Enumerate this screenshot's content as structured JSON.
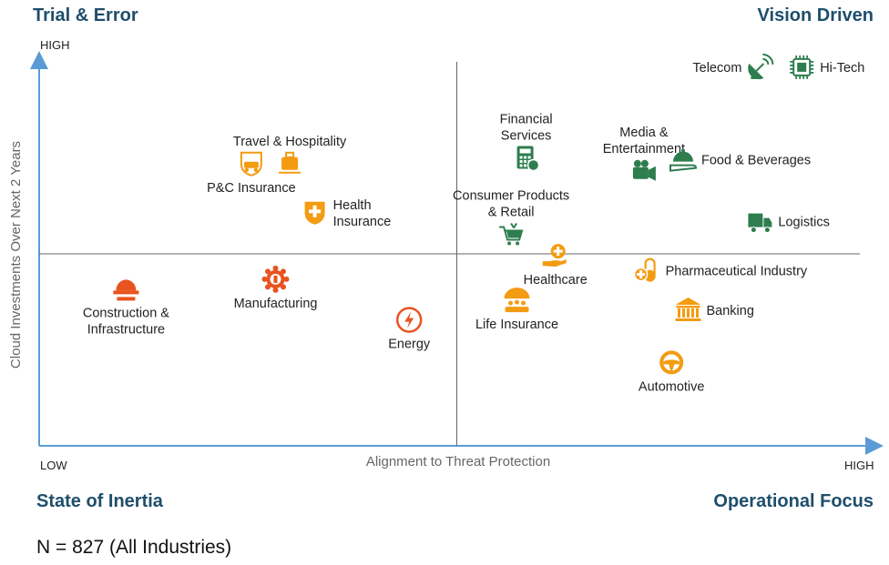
{
  "quadrants": {
    "top_left": "Trial & Error",
    "top_right": "Vision Driven",
    "bottom_left": "State of Inertia",
    "bottom_right": "Operational Focus"
  },
  "axis_ticks": {
    "y_high": "HIGH",
    "x_low": "LOW",
    "x_high": "HIGH"
  },
  "footer": "N = 827 (All Industries)",
  "colors": {
    "orange": "#f39c12",
    "orange_red": "#e8531f",
    "green": "#2e7d4f",
    "axis": "#5b9bd5",
    "divider": "#666666"
  },
  "chart_data": {
    "type": "scatter",
    "xlabel": "Alignment to Threat Protection",
    "ylabel": "Cloud Investments Over Next 2 Years",
    "xlim": [
      0,
      100
    ],
    "ylim": [
      0,
      100
    ],
    "x_tick_labels": [
      "LOW",
      "HIGH"
    ],
    "y_tick_labels": [
      "HIGH"
    ],
    "dividers": {
      "x": 50,
      "y": 50
    },
    "points": [
      {
        "label": "Travel & Hospitality",
        "lines": [
          "Travel & Hospitality"
        ],
        "x": 30,
        "y": 73.5,
        "icon": "luggage-icon",
        "color": "orange",
        "label_pos": "above"
      },
      {
        "label": "P&C Insurance",
        "lines": [
          "P&C Insurance"
        ],
        "x": 25.4,
        "y": 73.5,
        "icon": "car-shield-icon",
        "color": "orange",
        "label_pos": "below"
      },
      {
        "label": "Health Insurance",
        "lines": [
          "Health",
          "Insurance"
        ],
        "x": 33,
        "y": 60.7,
        "icon": "health-shield-icon",
        "color": "orange",
        "label_pos": "right"
      },
      {
        "label": "Financial Services",
        "lines": [
          "Financial",
          "Services"
        ],
        "x": 58.3,
        "y": 75,
        "icon": "calculator-icon",
        "color": "green",
        "label_pos": "above"
      },
      {
        "label": "Media & Entertainment",
        "lines": [
          "Media &",
          "Entertainment"
        ],
        "x": 72.4,
        "y": 71.6,
        "icon": "camera-icon",
        "color": "green",
        "label_pos": "above"
      },
      {
        "label": "Food & Beverages",
        "lines": [
          "Food & Beverages"
        ],
        "x": 77.1,
        "y": 74.5,
        "icon": "cloche-icon",
        "color": "green",
        "label_pos": "right"
      },
      {
        "label": "Telecom",
        "lines": [
          "Telecom"
        ],
        "x": 86.3,
        "y": 98.6,
        "icon": "satellite-dish-icon",
        "color": "green",
        "label_pos": "left"
      },
      {
        "label": "Hi-Tech",
        "lines": [
          "Hi-Tech"
        ],
        "x": 91.3,
        "y": 98.6,
        "icon": "chip-icon",
        "color": "green",
        "label_pos": "right"
      },
      {
        "label": "Consumer Products & Retail",
        "lines": [
          "Consumer Products",
          "& Retail"
        ],
        "x": 56.5,
        "y": 55.1,
        "icon": "cart-icon",
        "color": "green",
        "label_pos": "above"
      },
      {
        "label": "Logistics",
        "lines": [
          "Logistics"
        ],
        "x": 86.3,
        "y": 58.4,
        "icon": "truck-icon",
        "color": "green",
        "label_pos": "right"
      },
      {
        "label": "Healthcare",
        "lines": [
          "Healthcare"
        ],
        "x": 61.8,
        "y": 49.5,
        "icon": "hand-plus-icon",
        "color": "orange",
        "label_pos": "below"
      },
      {
        "label": "Pharmaceutical Industry",
        "lines": [
          "Pharmaceutical Industry"
        ],
        "x": 72.8,
        "y": 45.6,
        "icon": "pills-icon",
        "color": "orange",
        "label_pos": "right"
      },
      {
        "label": "Banking",
        "lines": [
          "Banking"
        ],
        "x": 77.7,
        "y": 35.3,
        "icon": "bank-icon",
        "color": "orange",
        "label_pos": "right"
      },
      {
        "label": "Life Insurance",
        "lines": [
          "Life Insurance"
        ],
        "x": 57.2,
        "y": 37.9,
        "icon": "family-umbrella-icon",
        "color": "orange",
        "label_pos": "below"
      },
      {
        "label": "Automotive",
        "lines": [
          "Automotive"
        ],
        "x": 75.7,
        "y": 21.7,
        "icon": "steering-wheel-icon",
        "color": "orange",
        "label_pos": "below"
      },
      {
        "label": "Construction & Infrastructure",
        "lines": [
          "Construction &",
          "Infrastructure"
        ],
        "x": 10.4,
        "y": 40.9,
        "icon": "hardhat-icon",
        "color": "orange_red",
        "label_pos": "below"
      },
      {
        "label": "Manufacturing",
        "lines": [
          "Manufacturing"
        ],
        "x": 28.3,
        "y": 43.4,
        "icon": "gear-wrench-icon",
        "color": "orange_red",
        "label_pos": "below"
      },
      {
        "label": "Energy",
        "lines": [
          "Energy"
        ],
        "x": 44.3,
        "y": 32.8,
        "icon": "energy-icon",
        "color": "orange_red",
        "label_pos": "below"
      }
    ]
  }
}
